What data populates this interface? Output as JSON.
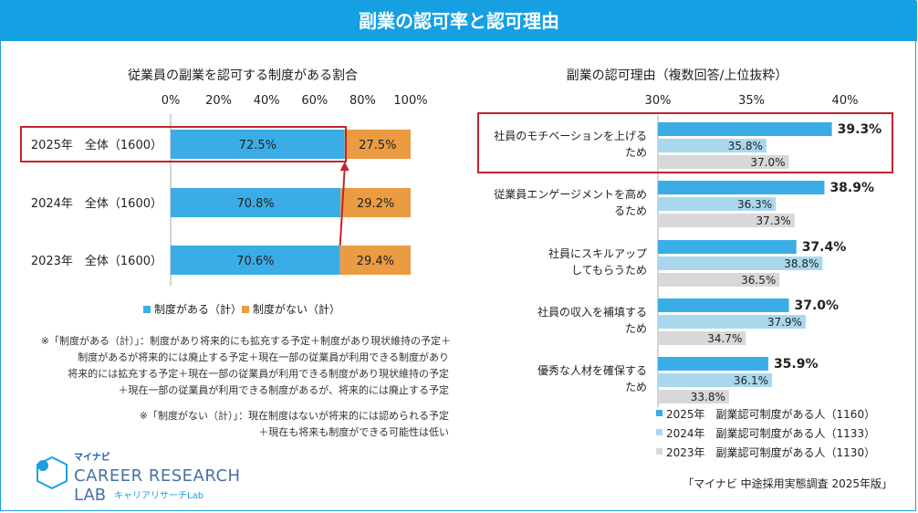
{
  "page_title": "副業の認可率と認可理由",
  "colors": {
    "banner": "#14a0e3",
    "blue": "#3aade6",
    "orange": "#eb9b42",
    "lightblue": "#a9d8ee",
    "gray": "#d8d8d8",
    "red": "#c0242c"
  },
  "left_chart": {
    "title": "従業員の副業を認可する制度がある割合",
    "legend": [
      "制度がある（計）",
      "制度がない（計）"
    ],
    "notes": [
      "※「制度がある（計）」：制度があり将来的にも拡充する予定＋制度があり現状維持の予定＋",
      "制度があるが将来的には廃止する予定＋現在一部の従業員が利用できる制度があり",
      "将来的には拡充する予定＋現在一部の従業員が利用できる制度があり現状維持の予定",
      "＋現在一部の従業員が利用できる制度があるが、将来的には廃止する予定",
      "※「制度がない（計）」：現在制度はないが将来的には認められる予定",
      "＋現在も将来も制度ができる可能性は低い"
    ]
  },
  "right_chart": {
    "title": "副業の認可理由（複数回答/上位抜粋）",
    "source": "「マイナビ 中途採用実態調査 2025年版」"
  },
  "logo": {
    "brand": "マイナビ",
    "line1": "CAREER RESEARCH",
    "line2": "LAB",
    "sub": "キャリアリサーチLab"
  },
  "chart_data": [
    {
      "type": "bar",
      "orientation": "horizontal",
      "stacked": true,
      "title": "従業員の副業を認可する制度がある割合",
      "categories": [
        "2025年　全体（1600）",
        "2024年　全体（1600）",
        "2023年　全体（1600）"
      ],
      "series": [
        {
          "name": "制度がある（計）",
          "values": [
            72.5,
            70.8,
            70.6
          ]
        },
        {
          "name": "制度がない（計）",
          "values": [
            27.5,
            29.2,
            29.4
          ]
        }
      ],
      "xlim": [
        0,
        100
      ],
      "xticks": [
        "0%",
        "20%",
        "40%",
        "60%",
        "80%",
        "100%"
      ],
      "legend_position": "bottom",
      "highlight": "2025年　全体（1600）"
    },
    {
      "type": "bar",
      "orientation": "horizontal",
      "title": "副業の認可理由（複数回答/上位抜粋）",
      "categories": [
        [
          "社員のモチベーションを上げる",
          "ため"
        ],
        [
          "従業員エンゲージメントを高め",
          "るため"
        ],
        [
          "社員にスキルアップ",
          "してもらうため"
        ],
        [
          "社員の収入を補填する",
          "ため"
        ],
        [
          "優秀な人材を確保する",
          "ため"
        ]
      ],
      "series": [
        {
          "name": "2025年　副業認可制度がある人（1160）",
          "values": [
            39.3,
            38.9,
            37.4,
            37.0,
            35.9
          ]
        },
        {
          "name": "2024年　副業認可制度がある人（1133）",
          "values": [
            35.8,
            36.3,
            38.8,
            37.9,
            36.1
          ]
        },
        {
          "name": "2023年　副業認可制度がある人（1130）",
          "values": [
            37.0,
            37.3,
            36.5,
            34.7,
            33.8
          ]
        }
      ],
      "xlim": [
        30,
        40
      ],
      "xticks": [
        "30%",
        "35%",
        "40%"
      ],
      "legend_position": "bottom-right",
      "highlight": "社員のモチベーションを上げるため"
    }
  ]
}
